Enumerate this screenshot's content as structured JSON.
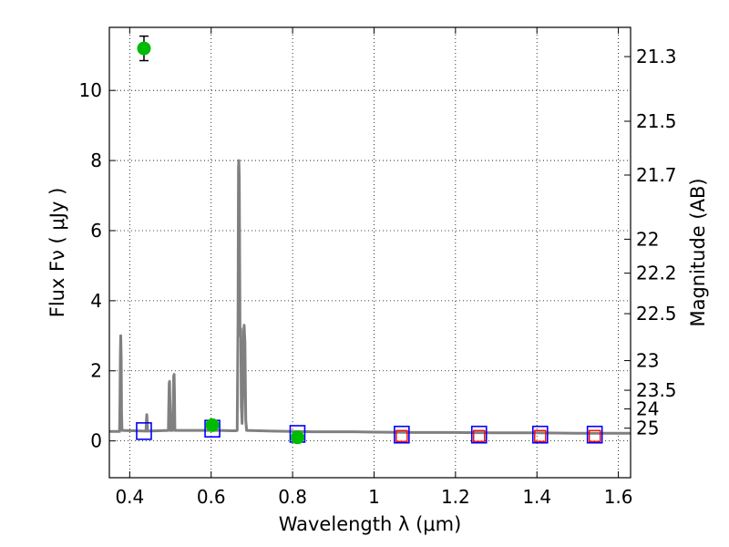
{
  "chart_data": {
    "type": "scatter",
    "xlabel": "Wavelength  λ (μm)",
    "ylabel": "Flux  Fν  ( μJy )",
    "ylabel_right": "Magnitude (AB)",
    "xlim": [
      0.35,
      1.63
    ],
    "ylim": [
      -1.05,
      11.8
    ],
    "grid": true,
    "x_ticks": [
      {
        "value": 0.4,
        "label": "0.4"
      },
      {
        "value": 0.6,
        "label": "0.6"
      },
      {
        "value": 0.8,
        "label": "0.8"
      },
      {
        "value": 1.0,
        "label": "1"
      },
      {
        "value": 1.2,
        "label": "1.2"
      },
      {
        "value": 1.4,
        "label": "1.4"
      },
      {
        "value": 1.6,
        "label": "1.6"
      }
    ],
    "y_ticks": [
      {
        "value": 0,
        "label": "0"
      },
      {
        "value": 2,
        "label": "2"
      },
      {
        "value": 4,
        "label": "4"
      },
      {
        "value": 6,
        "label": "6"
      },
      {
        "value": 8,
        "label": "8"
      },
      {
        "value": 10,
        "label": "10"
      }
    ],
    "right_ticks": [
      {
        "value": 21.3,
        "label": "21.3"
      },
      {
        "value": 21.5,
        "label": "21.5"
      },
      {
        "value": 21.7,
        "label": "21.7"
      },
      {
        "value": 22.0,
        "label": "22"
      },
      {
        "value": 22.2,
        "label": "22.2"
      },
      {
        "value": 22.5,
        "label": "22.5"
      },
      {
        "value": 23.0,
        "label": "23"
      },
      {
        "value": 23.5,
        "label": "23.5"
      },
      {
        "value": 24.0,
        "label": "24"
      },
      {
        "value": 25.0,
        "label": "25"
      }
    ],
    "spectrum": {
      "color": "#808080",
      "baseline": 0.25,
      "points": [
        [
          0.35,
          0.27
        ],
        [
          0.375,
          0.27
        ],
        [
          0.376,
          1.0
        ],
        [
          0.377,
          2.5
        ],
        [
          0.378,
          3.0
        ],
        [
          0.379,
          2.4
        ],
        [
          0.38,
          0.8
        ],
        [
          0.381,
          0.3
        ],
        [
          0.44,
          0.28
        ],
        [
          0.441,
          0.6
        ],
        [
          0.442,
          0.75
        ],
        [
          0.443,
          0.5
        ],
        [
          0.444,
          0.28
        ],
        [
          0.495,
          0.3
        ],
        [
          0.496,
          1.0
        ],
        [
          0.497,
          1.65
        ],
        [
          0.498,
          1.7
        ],
        [
          0.499,
          1.0
        ],
        [
          0.5,
          0.3
        ],
        [
          0.505,
          0.3
        ],
        [
          0.507,
          1.2
        ],
        [
          0.508,
          1.85
        ],
        [
          0.509,
          1.9
        ],
        [
          0.51,
          1.3
        ],
        [
          0.511,
          0.3
        ],
        [
          0.6,
          0.3
        ],
        [
          0.62,
          0.3
        ],
        [
          0.65,
          0.29
        ],
        [
          0.66,
          0.29
        ],
        [
          0.664,
          0.3
        ],
        [
          0.666,
          3.5
        ],
        [
          0.667,
          7.8
        ],
        [
          0.668,
          8.0
        ],
        [
          0.669,
          7.5
        ],
        [
          0.671,
          3.0
        ],
        [
          0.673,
          3.2
        ],
        [
          0.674,
          1.0
        ],
        [
          0.676,
          0.5
        ],
        [
          0.678,
          1.5
        ],
        [
          0.68,
          3.1
        ],
        [
          0.681,
          3.3
        ],
        [
          0.683,
          2.8
        ],
        [
          0.685,
          0.6
        ],
        [
          0.687,
          0.3
        ],
        [
          0.75,
          0.28
        ],
        [
          0.8,
          0.27
        ],
        [
          0.85,
          0.26
        ],
        [
          0.9,
          0.26
        ],
        [
          0.95,
          0.26
        ],
        [
          1.0,
          0.25
        ],
        [
          1.1,
          0.24
        ],
        [
          1.2,
          0.24
        ],
        [
          1.3,
          0.23
        ],
        [
          1.4,
          0.23
        ],
        [
          1.5,
          0.22
        ],
        [
          1.63,
          0.22
        ]
      ]
    },
    "observed": {
      "color": "#00bb00",
      "points": [
        {
          "x": 0.435,
          "y": 11.2,
          "yerr": 0.35
        },
        {
          "x": 0.603,
          "y": 0.45,
          "yerr": 0.05
        },
        {
          "x": 0.812,
          "y": 0.1,
          "yerr": 0.05
        }
      ]
    },
    "model_boxes": {
      "color": "#0000ff",
      "points": [
        {
          "x": 0.435,
          "y": 0.28
        },
        {
          "x": 0.603,
          "y": 0.35
        },
        {
          "x": 0.812,
          "y": 0.2
        },
        {
          "x": 1.068,
          "y": 0.18
        },
        {
          "x": 1.258,
          "y": 0.18
        },
        {
          "x": 1.408,
          "y": 0.18
        },
        {
          "x": 1.542,
          "y": 0.18
        }
      ]
    },
    "upper_limit_boxes": {
      "color": "#ff0000",
      "points": [
        {
          "x": 1.068,
          "y": 0.14
        },
        {
          "x": 1.258,
          "y": 0.14
        },
        {
          "x": 1.408,
          "y": 0.14
        },
        {
          "x": 1.542,
          "y": 0.14
        }
      ]
    }
  }
}
